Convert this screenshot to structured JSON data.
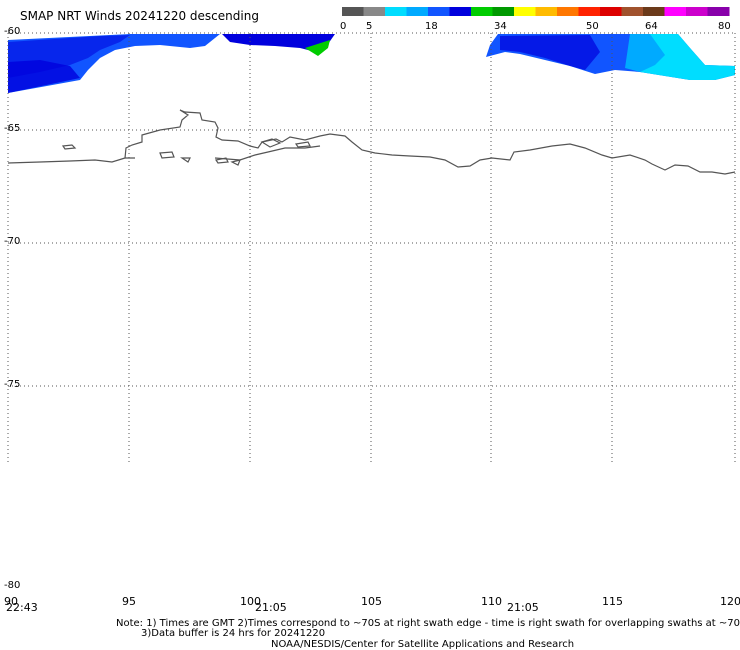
{
  "title": "SMAP NRT Winds  20241220 descending",
  "colorbar": {
    "labels": [
      "0",
      "5",
      "18",
      "34",
      "50",
      "64",
      "80"
    ],
    "segments": [
      "#555555",
      "#888888",
      "#00ddff",
      "#00aaff",
      "#1155ff",
      "#0000dd",
      "#00cc00",
      "#009900",
      "#ffff00",
      "#ffbb00",
      "#ff7700",
      "#ff2200",
      "#dd0000",
      "#a0522d",
      "#6b3a1a",
      "#ff00ff",
      "#cc00cc",
      "#8800aa"
    ]
  },
  "axes": {
    "lat_labels": [
      "-60",
      "-65",
      "-70",
      "-75",
      "-80"
    ],
    "lon_labels": [
      "90",
      "95",
      "100",
      "105",
      "110",
      "115",
      "120"
    ]
  },
  "times": [
    "22:43",
    "21:05",
    "21:05"
  ],
  "note": {
    "line1": "Note: 1) Times are GMT 2)Times correspond to ~70S at right swath edge - time is right swath for overlapping swaths at ~70S",
    "line2": "3)Data buffer is 24 hrs for 20241220",
    "line3": "NOAA/NESDIS/Center for Satellite Applications and Research"
  },
  "colors": {
    "wind_dark": "#0000dd",
    "wind_mid": "#1155ff",
    "wind_light": "#00ddff",
    "wind_green": "#00cc00",
    "coast": "#555555"
  }
}
